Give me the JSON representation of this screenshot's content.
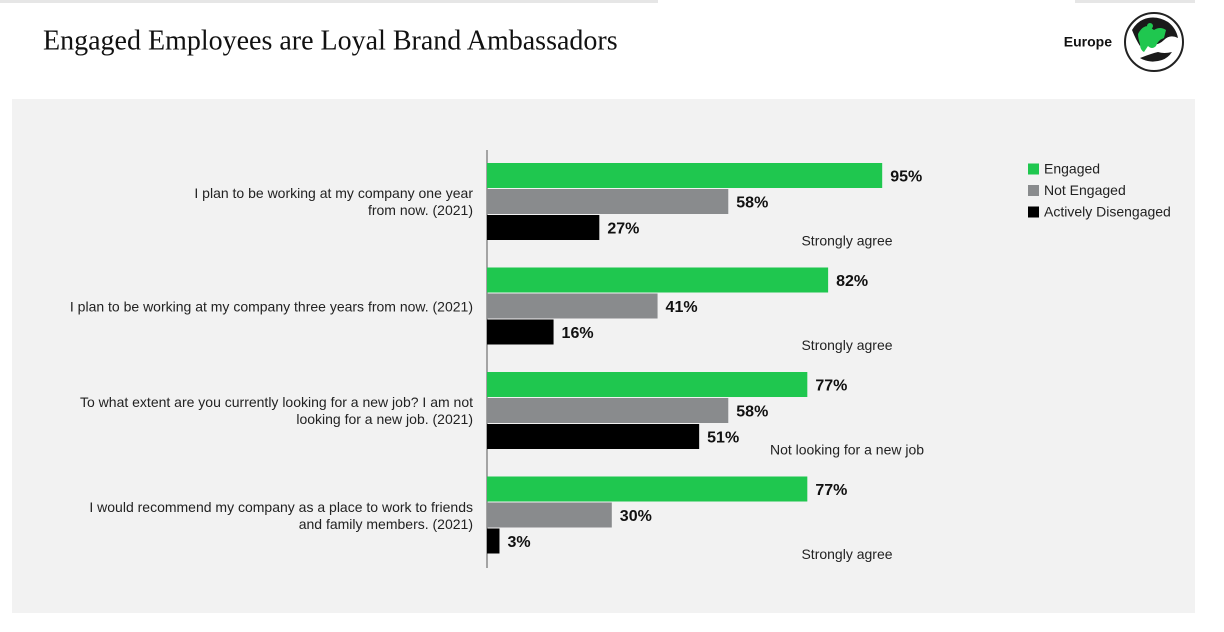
{
  "chart_data": {
    "type": "hbar",
    "title": "Engaged Employees are Loyal Brand Ambassadors",
    "region": "Europe",
    "categories": [
      "I plan to be working at my company one year\nfrom now. (2021)",
      "I plan to be working at my company three years from now. (2021)",
      "To what extent are you currently looking for a new job? I am not\nlooking for a new job. (2021)",
      "I would recommend my company as a place to work to friends\nand family members. (2021)"
    ],
    "annotations": [
      "Strongly agree",
      "Strongly agree",
      "Not looking for a new job",
      "Strongly agree"
    ],
    "xlim": [
      0,
      100
    ],
    "legend": "top-right",
    "series": [
      {
        "name": "Engaged",
        "color": "#1fc74f",
        "values": [
          95,
          82,
          77,
          77
        ],
        "value_labels": [
          "95%",
          "82%",
          "77%",
          "77%"
        ]
      },
      {
        "name": "Not Engaged",
        "color": "#898b8d",
        "values": [
          58,
          41,
          58,
          30
        ],
        "value_labels": [
          "58%",
          "41%",
          "58%",
          "30%"
        ]
      },
      {
        "name": "Actively Disengaged",
        "color": "#000000",
        "values": [
          27,
          16,
          51,
          3
        ],
        "value_labels": [
          "27%",
          "16%",
          "51%",
          "3%"
        ]
      }
    ]
  }
}
